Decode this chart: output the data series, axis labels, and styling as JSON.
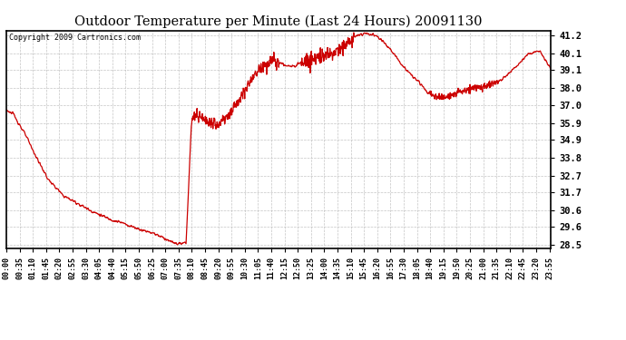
{
  "title": "Outdoor Temperature per Minute (Last 24 Hours) 20091130",
  "copyright_text": "Copyright 2009 Cartronics.com",
  "line_color": "#cc0000",
  "background_color": "#ffffff",
  "plot_background": "#ffffff",
  "grid_color": "#bbbbbb",
  "y_ticks": [
    28.5,
    29.6,
    30.6,
    31.7,
    32.7,
    33.8,
    34.9,
    35.9,
    37.0,
    38.0,
    39.1,
    40.1,
    41.2
  ],
  "ylim": [
    28.3,
    41.5
  ],
  "x_tick_labels": [
    "00:00",
    "00:35",
    "01:10",
    "01:45",
    "02:20",
    "02:55",
    "03:30",
    "04:05",
    "04:40",
    "05:15",
    "05:50",
    "06:25",
    "07:00",
    "07:35",
    "08:10",
    "08:45",
    "09:20",
    "09:55",
    "10:30",
    "11:05",
    "11:40",
    "12:15",
    "12:50",
    "13:25",
    "14:00",
    "14:35",
    "15:10",
    "15:45",
    "16:20",
    "16:55",
    "17:30",
    "18:05",
    "18:40",
    "19:15",
    "19:50",
    "20:25",
    "21:00",
    "21:35",
    "22:10",
    "22:45",
    "23:20",
    "23:55"
  ],
  "key_times": [
    0,
    20,
    50,
    80,
    110,
    150,
    190,
    230,
    270,
    310,
    340,
    360,
    385,
    400,
    415,
    430,
    445,
    455,
    465,
    475,
    490,
    510,
    530,
    560,
    590,
    620,
    650,
    670,
    690,
    710,
    730,
    750,
    775,
    800,
    820,
    840,
    855,
    870,
    890,
    910,
    930,
    950,
    970,
    990,
    1010,
    1030,
    1050,
    1070,
    1090,
    1110,
    1130,
    1150,
    1170,
    1200,
    1230,
    1260,
    1290,
    1320,
    1350,
    1380,
    1410,
    1440
  ],
  "key_values": [
    36.7,
    36.4,
    35.2,
    33.8,
    32.5,
    31.5,
    31.0,
    30.5,
    30.1,
    29.8,
    29.55,
    29.4,
    29.25,
    29.1,
    28.95,
    28.75,
    28.6,
    28.58,
    28.57,
    28.6,
    36.2,
    36.3,
    35.9,
    35.85,
    36.4,
    37.5,
    38.6,
    39.2,
    39.55,
    39.65,
    39.45,
    39.3,
    39.55,
    39.75,
    39.9,
    40.05,
    40.15,
    40.25,
    40.5,
    40.9,
    41.25,
    41.35,
    41.25,
    41.0,
    40.5,
    39.9,
    39.3,
    38.8,
    38.4,
    37.8,
    37.55,
    37.4,
    37.55,
    37.75,
    38.0,
    38.1,
    38.3,
    38.7,
    39.4,
    40.1,
    40.25,
    39.1
  ],
  "total_minutes": 1440
}
